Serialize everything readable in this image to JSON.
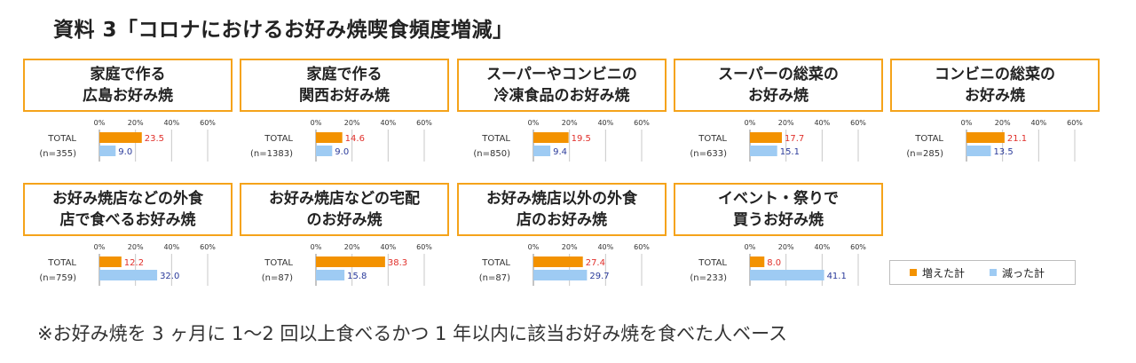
{
  "title": "資料 3「コロナにおけるお好み焼喫食頻度増減」",
  "footnote": "※お好み焼を 3 ヶ月に 1～2 回以上食べるかつ 1 年以内に該当お好み焼を食べた人ベース",
  "colors": {
    "increase": "#f39200",
    "decrease": "#9ecbf3",
    "border": "#f5a31a"
  },
  "legend": {
    "increase_label": "増えた計",
    "decrease_label": "減った計"
  },
  "chart_data": [
    {
      "type": "bar",
      "orientation": "horizontal",
      "title_lines": [
        "家庭で作る",
        "広島お好み焼"
      ],
      "row_label": "TOTAL",
      "n_label": "(n=355)",
      "ticks": [
        "0%",
        "20%",
        "40%",
        "60%"
      ],
      "xlim": [
        0,
        60
      ],
      "series": [
        {
          "name": "増えた計",
          "value": 23.5
        },
        {
          "name": "減った計",
          "value": 9.0
        }
      ],
      "value_labels": [
        "23.5",
        "9.0"
      ]
    },
    {
      "type": "bar",
      "orientation": "horizontal",
      "title_lines": [
        "家庭で作る",
        "関西お好み焼"
      ],
      "row_label": "TOTAL",
      "n_label": "(n=1383)",
      "ticks": [
        "0%",
        "20%",
        "40%",
        "60%"
      ],
      "xlim": [
        0,
        60
      ],
      "series": [
        {
          "name": "増えた計",
          "value": 14.6
        },
        {
          "name": "減った計",
          "value": 9.0
        }
      ],
      "value_labels": [
        "14.6",
        "9.0"
      ]
    },
    {
      "type": "bar",
      "orientation": "horizontal",
      "title_lines": [
        "スーパーやコンビニの",
        "冷凍食品のお好み焼"
      ],
      "row_label": "TOTAL",
      "n_label": "(n=850)",
      "ticks": [
        "0%",
        "20%",
        "40%",
        "60%"
      ],
      "xlim": [
        0,
        60
      ],
      "series": [
        {
          "name": "増えた計",
          "value": 19.5
        },
        {
          "name": "減った計",
          "value": 9.4
        }
      ],
      "value_labels": [
        "19.5",
        "9.4"
      ]
    },
    {
      "type": "bar",
      "orientation": "horizontal",
      "title_lines": [
        "スーパーの総菜の",
        "お好み焼"
      ],
      "row_label": "TOTAL",
      "n_label": "(n=633)",
      "ticks": [
        "0%",
        "20%",
        "40%",
        "60%"
      ],
      "xlim": [
        0,
        60
      ],
      "series": [
        {
          "name": "増えた計",
          "value": 17.7
        },
        {
          "name": "減った計",
          "value": 15.1
        }
      ],
      "value_labels": [
        "17.7",
        "15.1"
      ]
    },
    {
      "type": "bar",
      "orientation": "horizontal",
      "title_lines": [
        "コンビニの総菜の",
        "お好み焼"
      ],
      "row_label": "TOTAL",
      "n_label": "(n=285)",
      "ticks": [
        "0%",
        "20%",
        "40%",
        "60%"
      ],
      "xlim": [
        0,
        60
      ],
      "series": [
        {
          "name": "増えた計",
          "value": 21.1
        },
        {
          "name": "減った計",
          "value": 13.5
        }
      ],
      "value_labels": [
        "21.1",
        "13.5"
      ]
    },
    {
      "type": "bar",
      "orientation": "horizontal",
      "title_lines": [
        "お好み焼店などの外食",
        "店で食べるお好み焼"
      ],
      "row_label": "TOTAL",
      "n_label": "(n=759)",
      "ticks": [
        "0%",
        "20%",
        "40%",
        "60%"
      ],
      "xlim": [
        0,
        60
      ],
      "series": [
        {
          "name": "増えた計",
          "value": 12.2
        },
        {
          "name": "減った計",
          "value": 32.0
        }
      ],
      "value_labels": [
        "12.2",
        "32.0"
      ]
    },
    {
      "type": "bar",
      "orientation": "horizontal",
      "title_lines": [
        "お好み焼店などの宅配",
        "のお好み焼"
      ],
      "row_label": "TOTAL",
      "n_label": "(n=87)",
      "ticks": [
        "0%",
        "20%",
        "40%",
        "60%"
      ],
      "xlim": [
        0,
        60
      ],
      "series": [
        {
          "name": "増えた計",
          "value": 38.3
        },
        {
          "name": "減った計",
          "value": 15.8
        }
      ],
      "value_labels": [
        "38.3",
        "15.8"
      ]
    },
    {
      "type": "bar",
      "orientation": "horizontal",
      "title_lines": [
        "お好み焼店以外の外食",
        "店のお好み焼"
      ],
      "row_label": "TOTAL",
      "n_label": "(n=87)",
      "ticks": [
        "0%",
        "20%",
        "40%",
        "60%"
      ],
      "xlim": [
        0,
        60
      ],
      "series": [
        {
          "name": "増えた計",
          "value": 27.4
        },
        {
          "name": "減った計",
          "value": 29.7
        }
      ],
      "value_labels": [
        "27.4",
        "29.7"
      ]
    },
    {
      "type": "bar",
      "orientation": "horizontal",
      "title_lines": [
        "イベント・祭りで",
        "買うお好み焼"
      ],
      "row_label": "TOTAL",
      "n_label": "(n=233)",
      "ticks": [
        "0%",
        "20%",
        "40%",
        "60%"
      ],
      "xlim": [
        0,
        60
      ],
      "series": [
        {
          "name": "増えた計",
          "value": 8.0
        },
        {
          "name": "減った計",
          "value": 41.1
        }
      ],
      "value_labels": [
        "8.0",
        "41.1"
      ]
    }
  ]
}
